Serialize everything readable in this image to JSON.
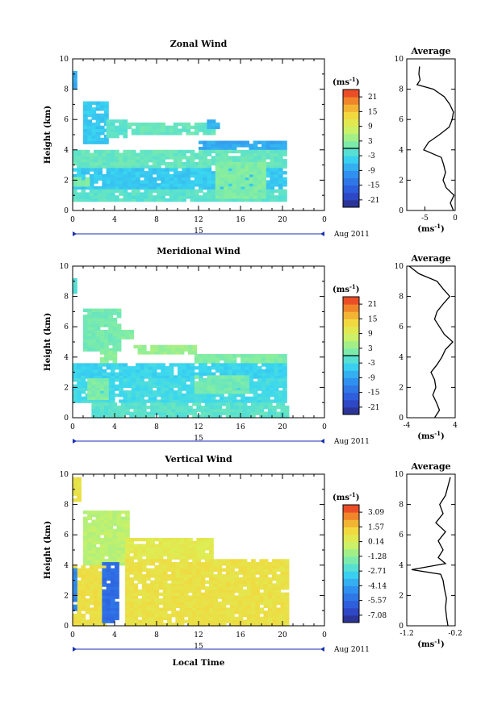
{
  "x_axis": {
    "ticks": [
      "0",
      "4",
      "8",
      "12",
      "16",
      "20",
      "0"
    ],
    "day_label": "15",
    "month_label": "Aug 2011",
    "xlabel": "Local Time"
  },
  "y_axis": {
    "ticks": [
      "0",
      "2",
      "4",
      "6",
      "8",
      "10"
    ],
    "ylabel": "Height (km)"
  },
  "units": {
    "base": "(ms",
    "exp": "-1",
    "close": ")"
  },
  "chart_data": [
    {
      "type": "heatmap",
      "title": "Zonal Wind",
      "xlim": [
        0,
        24
      ],
      "ylim": [
        0,
        10
      ],
      "xlabel": "",
      "ylabel": "Height (km)",
      "colorbar": {
        "title": "(ms-1)",
        "ticks": [
          "21",
          "15",
          "9",
          "3",
          "-3",
          "-9",
          "-15",
          "-21"
        ],
        "min": -24,
        "max": 24
      },
      "regions": [
        {
          "x": [
            0.0,
            0.2
          ],
          "y": [
            8.0,
            9.2
          ],
          "value": -8
        },
        {
          "x": [
            1.0,
            3.2
          ],
          "y": [
            4.4,
            7.2
          ],
          "value": -5
        },
        {
          "x": [
            3.2,
            5.2
          ],
          "y": [
            4.8,
            6.0
          ],
          "value": -1
        },
        {
          "x": [
            5.2,
            13.4
          ],
          "y": [
            5.0,
            5.8
          ],
          "value": 0
        },
        {
          "x": [
            12.8,
            14.0
          ],
          "y": [
            5.4,
            5.9
          ],
          "value": -7
        },
        {
          "x": [
            12.0,
            20.4
          ],
          "y": [
            4.0,
            4.6
          ],
          "value": -8
        },
        {
          "x": [
            0.0,
            20.4
          ],
          "y": [
            2.8,
            4.0
          ],
          "value": 0
        },
        {
          "x": [
            0.0,
            20.4
          ],
          "y": [
            1.4,
            2.8
          ],
          "value": -5
        },
        {
          "x": [
            0.0,
            20.4
          ],
          "y": [
            0.6,
            1.4
          ],
          "value": -1
        },
        {
          "x": [
            13.6,
            18.4
          ],
          "y": [
            0.8,
            3.2
          ],
          "value": 2
        },
        {
          "x": [
            0.0,
            1.4
          ],
          "y": [
            1.6,
            2.2
          ],
          "value": 2
        }
      ],
      "average_profile": {
        "title": "Average",
        "xlabel": "(ms-1)",
        "xlim": [
          -8,
          0
        ],
        "xticks": [
          "-5",
          "0"
        ],
        "yticks": [
          "0",
          "2",
          "4",
          "6",
          "8",
          "10"
        ],
        "height": [
          0,
          0.5,
          1,
          1.5,
          2,
          2.5,
          3,
          3.5,
          4,
          4.5,
          5,
          5.5,
          6,
          6.5,
          7,
          7.5,
          8,
          8.3,
          8.6,
          9,
          9.5
        ],
        "value": [
          -0.3,
          -0.8,
          -0.2,
          -1.5,
          -2.0,
          -1.6,
          -1.9,
          -2.3,
          -5.2,
          -4.4,
          -2.6,
          -1.0,
          -0.5,
          -0.3,
          -0.9,
          -1.8,
          -3.6,
          -6.3,
          -5.8,
          -6.0,
          -5.9
        ]
      }
    },
    {
      "type": "heatmap",
      "title": "Meridional Wind",
      "xlim": [
        0,
        24
      ],
      "ylim": [
        0,
        10
      ],
      "xlabel": "",
      "ylabel": "Height (km)",
      "colorbar": {
        "title": "(ms-1)",
        "ticks": [
          "21",
          "15",
          "9",
          "3",
          "-3",
          "-9",
          "-15",
          "-21"
        ],
        "min": -24,
        "max": 24
      },
      "regions": [
        {
          "x": [
            0.0,
            0.4
          ],
          "y": [
            8.2,
            9.2
          ],
          "value": -1
        },
        {
          "x": [
            1.0,
            4.6
          ],
          "y": [
            4.4,
            7.2
          ],
          "value": 1
        },
        {
          "x": [
            4.2,
            5.8
          ],
          "y": [
            5.2,
            5.8
          ],
          "value": 2
        },
        {
          "x": [
            5.8,
            11.6
          ],
          "y": [
            4.2,
            4.8
          ],
          "value": 4
        },
        {
          "x": [
            2.6,
            4.2
          ],
          "y": [
            3.6,
            4.4
          ],
          "value": 3
        },
        {
          "x": [
            11.6,
            20.4
          ],
          "y": [
            3.6,
            4.2
          ],
          "value": 2
        },
        {
          "x": [
            0.0,
            20.4
          ],
          "y": [
            2.6,
            3.6
          ],
          "value": -4
        },
        {
          "x": [
            0.0,
            20.4
          ],
          "y": [
            1.0,
            2.6
          ],
          "value": -3
        },
        {
          "x": [
            1.4,
            3.4
          ],
          "y": [
            1.2,
            2.6
          ],
          "value": 2
        },
        {
          "x": [
            11.6,
            16.6
          ],
          "y": [
            1.6,
            2.8
          ],
          "value": 1
        },
        {
          "x": [
            1.8,
            20.4
          ],
          "y": [
            0.0,
            1.0
          ],
          "value": -1
        }
      ],
      "average_profile": {
        "title": "Average",
        "xlabel": "(ms-1)",
        "xlim": [
          -4,
          4
        ],
        "xticks": [
          "-4",
          "4"
        ],
        "yticks": [
          "0",
          "2",
          "4",
          "6",
          "8",
          "10"
        ],
        "height": [
          0,
          0.5,
          1,
          1.5,
          2,
          2.5,
          3,
          3.5,
          4,
          4.5,
          5,
          5.5,
          6,
          6.5,
          7,
          7.5,
          8,
          8.5,
          9,
          9.5,
          10
        ],
        "value": [
          0.6,
          1.4,
          0.9,
          0.3,
          0.8,
          0.6,
          0.0,
          1.0,
          1.8,
          2.4,
          3.6,
          2.2,
          1.4,
          0.6,
          1.0,
          2.0,
          3.1,
          2.0,
          1.0,
          -2.0,
          -3.6
        ]
      }
    },
    {
      "type": "heatmap",
      "title": "Vertical Wind",
      "xlim": [
        0,
        24
      ],
      "ylim": [
        0,
        10
      ],
      "xlabel": "Local Time",
      "ylabel": "Height (km)",
      "colorbar": {
        "title": "(ms-1)",
        "ticks": [
          "3.09",
          "1.57",
          "0.14",
          "-1.28",
          "-2.71",
          "-4.14",
          "-5.57",
          "-7.08"
        ],
        "min": -8.5,
        "max": 4.3
      },
      "regions": [
        {
          "x": [
            0.0,
            0.8
          ],
          "y": [
            8.2,
            9.8
          ],
          "value": 1.0
        },
        {
          "x": [
            1.0,
            5.2
          ],
          "y": [
            4.0,
            7.6
          ],
          "value": -0.4
        },
        {
          "x": [
            5.0,
            13.4
          ],
          "y": [
            4.4,
            5.8
          ],
          "value": 0.7
        },
        {
          "x": [
            5.0,
            20.4
          ],
          "y": [
            0.0,
            4.4
          ],
          "value": 1.1
        },
        {
          "x": [
            0.0,
            3.0
          ],
          "y": [
            0.0,
            4.0
          ],
          "value": 1.2
        },
        {
          "x": [
            0.0,
            0.3
          ],
          "y": [
            1.0,
            3.8
          ],
          "value": -5.2
        },
        {
          "x": [
            2.8,
            4.4
          ],
          "y": [
            0.2,
            4.1
          ],
          "value": -6.0
        }
      ],
      "average_profile": {
        "title": "Average",
        "xlabel": "(ms-1)",
        "xlim": [
          -1.2,
          -0.2
        ],
        "xticks": [
          "-1.2",
          "-0.2"
        ],
        "yticks": [
          "0",
          "2",
          "4",
          "6",
          "8",
          "10"
        ],
        "height": [
          0,
          0.6,
          1.2,
          1.8,
          2.4,
          3.0,
          3.4,
          3.7,
          4.1,
          4.5,
          5.0,
          5.6,
          6.2,
          6.8,
          7.4,
          8.0,
          8.6,
          9.2,
          9.8
        ],
        "value": [
          -0.35,
          -0.38,
          -0.4,
          -0.38,
          -0.42,
          -0.45,
          -0.5,
          -1.1,
          -0.4,
          -0.55,
          -0.45,
          -0.55,
          -0.4,
          -0.6,
          -0.45,
          -0.52,
          -0.4,
          -0.35,
          -0.3
        ]
      }
    }
  ]
}
